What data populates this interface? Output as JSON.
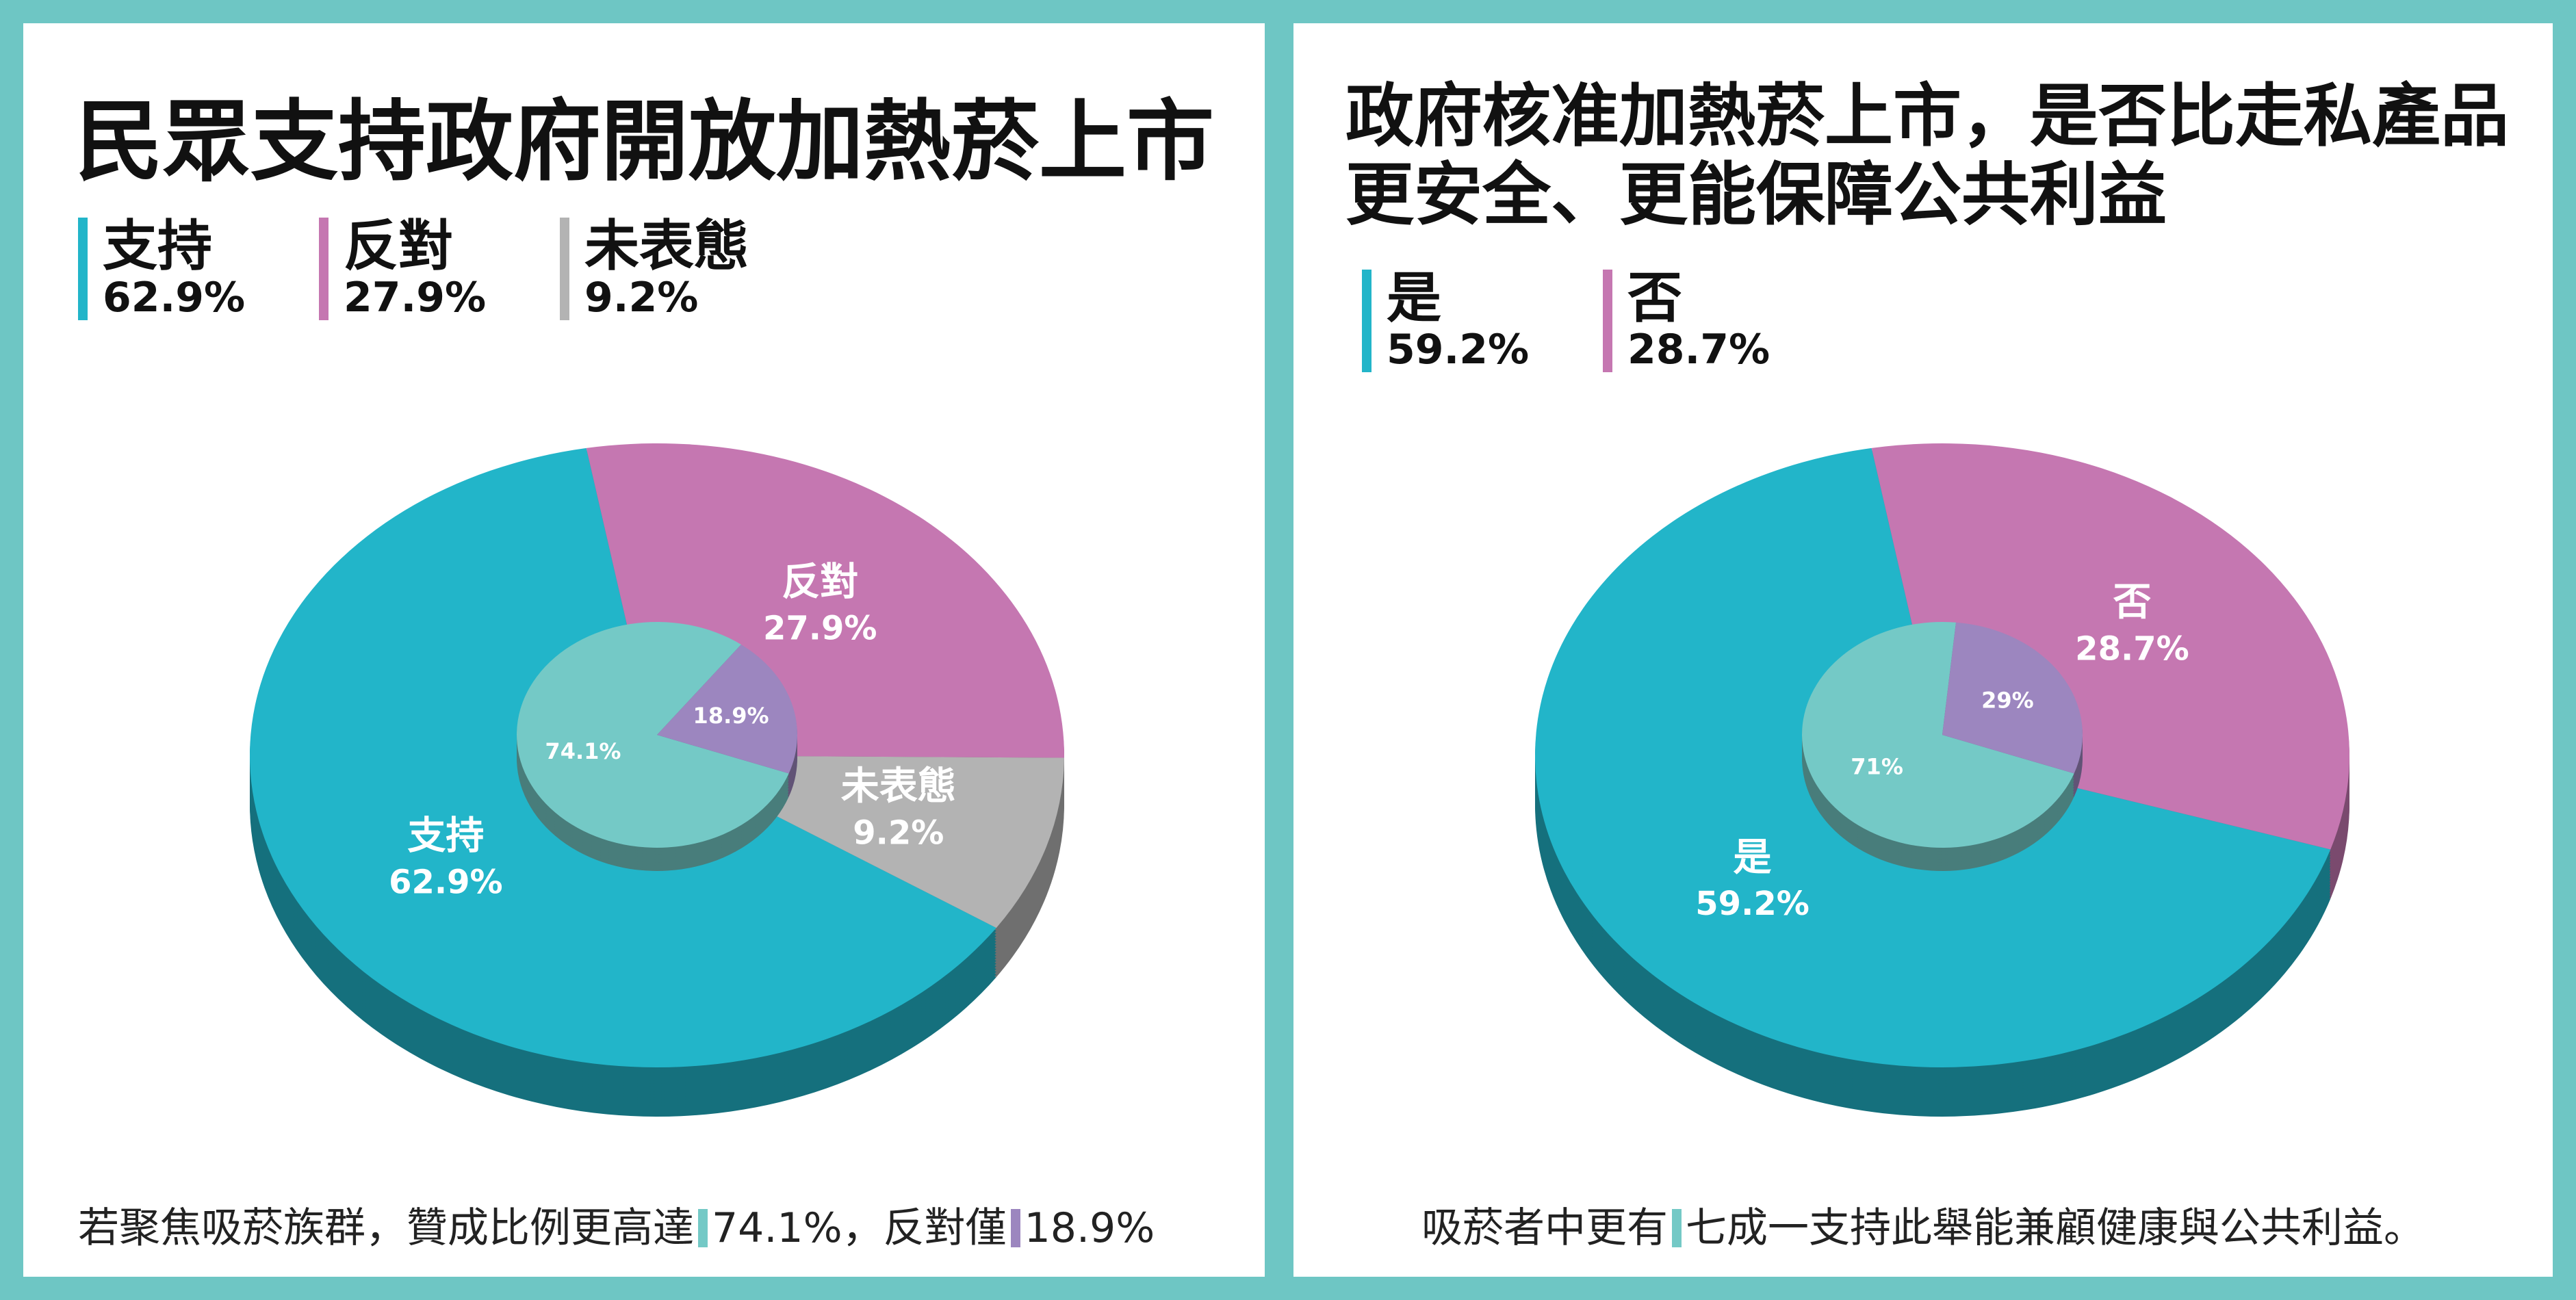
{
  "chart_data": [
    {
      "type": "pie",
      "title": "民眾支持政府開放加熱菸上市",
      "categories": [
        "支持",
        "反對",
        "未表態"
      ],
      "values": [
        62.9,
        27.9,
        9.2
      ],
      "value_labels": [
        "62.9%",
        "27.9%",
        "9.2%"
      ],
      "colors": [
        "#22b5c9",
        "#c577b1",
        "#b3b3b3"
      ],
      "inner": {
        "values": [
          74.1,
          18.9
        ],
        "value_labels": [
          "74.1%",
          "18.9%"
        ],
        "colors": [
          "#74c9c6",
          "#9c86bf"
        ]
      },
      "footnote": [
        {
          "text": "若聚焦吸菸族群，贊成比例更高達"
        },
        {
          "text": "74.1%",
          "marker": "#74c9c6"
        },
        {
          "text": "，反對僅"
        },
        {
          "text": "18.9%",
          "marker": "#9c86bf"
        }
      ]
    },
    {
      "type": "pie",
      "title": "政府核准加熱菸上市，是否比走私產品\n更安全、更能保障公共利益",
      "categories": [
        "是",
        "否"
      ],
      "values": [
        59.2,
        28.7
      ],
      "value_labels": [
        "59.2%",
        "28.7%"
      ],
      "colors": [
        "#22b5c9",
        "#c577b1"
      ],
      "inner": {
        "values": [
          71,
          29
        ],
        "value_labels": [
          "71%",
          "29%"
        ],
        "colors": [
          "#74c9c6",
          "#9c86bf"
        ]
      },
      "footnote": [
        {
          "text": "吸菸者中更有"
        },
        {
          "text": "七成一支持此舉能兼顧健康與公共利益。",
          "marker": "#74c9c6"
        }
      ]
    }
  ]
}
